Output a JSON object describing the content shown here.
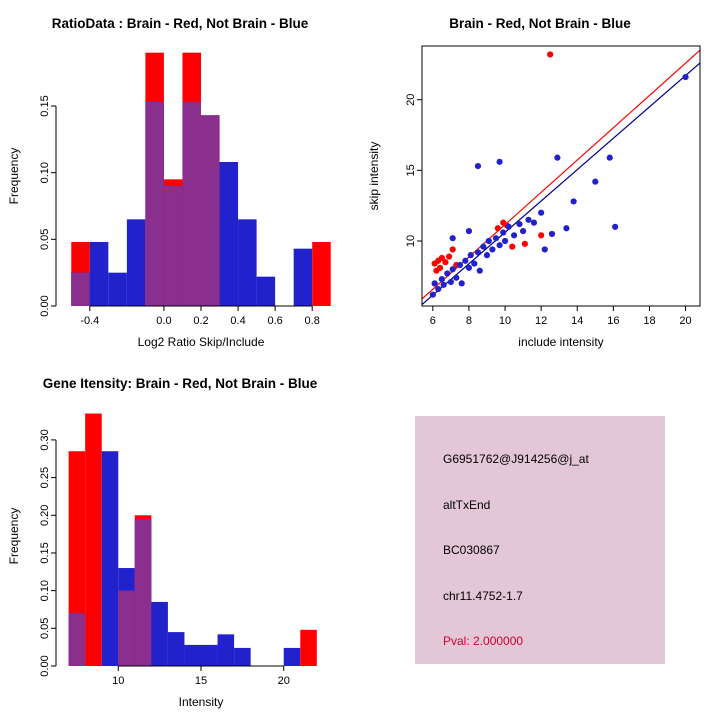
{
  "panels": {
    "info": {
      "bg": "#E4C7D7",
      "lines": [
        {
          "text": "G6951762@J914256@j_at",
          "color": "#000000"
        },
        {
          "text": "altTxEnd",
          "color": "#000000"
        },
        {
          "text": "BC030867",
          "color": "#000000"
        },
        {
          "text": "chr11.4752-1.7",
          "color": "#000000"
        },
        {
          "text": "Pval: 2.000000",
          "color": "#CC0033"
        }
      ]
    }
  },
  "chart_data": [
    {
      "type": "bar",
      "subtype": "overlaid-histogram",
      "title": "RatioData : Brain - Red, Not Brain - Blue",
      "xlabel": "Log2 Ratio Skip/Include",
      "ylabel": "Frequency",
      "xlim": [
        -0.55,
        0.95
      ],
      "ylim": [
        0,
        0.195
      ],
      "bin_start": -0.5,
      "bin_width": 0.1,
      "overlap_color": "#8B2F8F",
      "xticks": [
        {
          "v": -0.4,
          "label": "-0.4"
        },
        {
          "v": 0.0,
          "label": "0.0"
        },
        {
          "v": 0.2,
          "label": "0.2"
        },
        {
          "v": 0.4,
          "label": "0.4"
        },
        {
          "v": 0.6,
          "label": "0.6"
        },
        {
          "v": 0.8,
          "label": "0.8"
        }
      ],
      "yticks": [
        {
          "v": 0.0,
          "label": "0.00"
        },
        {
          "v": 0.05,
          "label": "0.05"
        },
        {
          "v": 0.1,
          "label": "0.10"
        },
        {
          "v": 0.15,
          "label": "0.15"
        }
      ],
      "series": [
        {
          "name": "Brain",
          "color": "#FF0000",
          "values": [
            0.048,
            0,
            0,
            0,
            0.19,
            0.095,
            0.19,
            0.143,
            0,
            0,
            0,
            0,
            0,
            0.048
          ]
        },
        {
          "name": "Not Brain",
          "color": "#2222CC",
          "values": [
            0.025,
            0.048,
            0.025,
            0.065,
            0.153,
            0.09,
            0.153,
            0.143,
            0.108,
            0.065,
            0.022,
            0,
            0.043,
            0
          ]
        }
      ]
    },
    {
      "type": "scatter",
      "title": "Brain - Red, Not Brain - Blue",
      "xlabel": "include intensity",
      "ylabel": "skip intensity",
      "xlim": [
        5.4,
        20.8
      ],
      "ylim": [
        5.4,
        23.8
      ],
      "xticks": [
        {
          "v": 6,
          "label": "6"
        },
        {
          "v": 8,
          "label": "8"
        },
        {
          "v": 10,
          "label": "10"
        },
        {
          "v": 12,
          "label": "12"
        },
        {
          "v": 14,
          "label": "14"
        },
        {
          "v": 16,
          "label": "16"
        },
        {
          "v": 18,
          "label": "18"
        },
        {
          "v": 20,
          "label": "20"
        }
      ],
      "yticks": [
        {
          "v": 10,
          "label": "10"
        },
        {
          "v": 15,
          "label": "15"
        },
        {
          "v": 20,
          "label": "20"
        }
      ],
      "lines": [
        {
          "color": "#FF0000",
          "x1": 5.4,
          "y1": 5.9,
          "x2": 20.8,
          "y2": 23.5
        },
        {
          "color": "#00008B",
          "x1": 5.4,
          "y1": 5.5,
          "x2": 20.8,
          "y2": 22.6
        }
      ],
      "series": [
        {
          "name": "Brain",
          "color": "#FF0000",
          "points": [
            [
              6.1,
              8.4
            ],
            [
              6.3,
              8.6
            ],
            [
              6.4,
              8.1
            ],
            [
              6.5,
              8.8
            ],
            [
              6.7,
              8.5
            ],
            [
              6.9,
              8.9
            ],
            [
              6.2,
              7.9
            ],
            [
              7.1,
              9.4
            ],
            [
              7.3,
              8.3
            ],
            [
              9.6,
              10.9
            ],
            [
              9.9,
              11.3
            ],
            [
              10.1,
              11.1
            ],
            [
              10.4,
              9.6
            ],
            [
              11.1,
              9.8
            ],
            [
              12.0,
              10.4
            ],
            [
              12.5,
              23.2
            ]
          ]
        },
        {
          "name": "Not Brain",
          "color": "#2222CC",
          "points": [
            [
              6.0,
              6.2
            ],
            [
              6.1,
              7.0
            ],
            [
              6.3,
              6.6
            ],
            [
              6.5,
              7.3
            ],
            [
              6.6,
              6.9
            ],
            [
              6.8,
              7.7
            ],
            [
              7.0,
              7.1
            ],
            [
              7.1,
              8.0
            ],
            [
              7.3,
              7.4
            ],
            [
              7.5,
              8.3
            ],
            [
              7.6,
              7.0
            ],
            [
              7.8,
              8.6
            ],
            [
              8.0,
              8.1
            ],
            [
              8.1,
              9.0
            ],
            [
              8.3,
              8.4
            ],
            [
              8.5,
              9.2
            ],
            [
              8.6,
              7.9
            ],
            [
              8.8,
              9.6
            ],
            [
              9.0,
              9.0
            ],
            [
              9.1,
              10.0
            ],
            [
              9.3,
              9.4
            ],
            [
              9.5,
              10.2
            ],
            [
              9.7,
              9.7
            ],
            [
              9.9,
              10.6
            ],
            [
              10.0,
              10.0
            ],
            [
              10.2,
              11.0
            ],
            [
              10.5,
              10.4
            ],
            [
              10.8,
              11.2
            ],
            [
              11.0,
              10.7
            ],
            [
              11.3,
              11.5
            ],
            [
              11.6,
              11.3
            ],
            [
              12.0,
              12.0
            ],
            [
              12.2,
              9.4
            ],
            [
              12.6,
              10.5
            ],
            [
              13.4,
              10.9
            ],
            [
              13.8,
              12.8
            ],
            [
              8.5,
              15.3
            ],
            [
              9.7,
              15.6
            ],
            [
              12.9,
              15.9
            ],
            [
              15.0,
              14.2
            ],
            [
              15.8,
              15.9
            ],
            [
              16.1,
              11.0
            ],
            [
              20.0,
              21.6
            ],
            [
              7.1,
              10.2
            ],
            [
              8.0,
              10.7
            ]
          ]
        }
      ]
    },
    {
      "type": "bar",
      "subtype": "overlaid-histogram",
      "title": "Gene Itensity: Brain - Red, Not Brain - Blue",
      "xlabel": "Intensity",
      "ylabel": "Frequency",
      "xlim": [
        6.6,
        23.4
      ],
      "ylim": [
        0,
        0.345
      ],
      "bin_start": 7,
      "bin_width": 1,
      "overlap_color": "#8B2F8F",
      "xticks": [
        {
          "v": 10,
          "label": "10"
        },
        {
          "v": 15,
          "label": "15"
        },
        {
          "v": 20,
          "label": "20"
        }
      ],
      "yticks": [
        {
          "v": 0.0,
          "label": "0.00"
        },
        {
          "v": 0.05,
          "label": "0.05"
        },
        {
          "v": 0.1,
          "label": "0.10"
        },
        {
          "v": 0.15,
          "label": "0.15"
        },
        {
          "v": 0.2,
          "label": "0.20"
        },
        {
          "v": 0.25,
          "label": "0.25"
        },
        {
          "v": 0.3,
          "label": "0.30"
        }
      ],
      "series": [
        {
          "name": "Brain",
          "color": "#FF0000",
          "values": [
            0.285,
            0.335,
            0,
            0.1,
            0.2,
            0,
            0,
            0,
            0,
            0,
            0,
            0,
            0,
            0,
            0.048,
            0
          ]
        },
        {
          "name": "Not Brain",
          "color": "#2222CC",
          "values": [
            0.07,
            0,
            0.285,
            0.13,
            0.195,
            0.085,
            0.045,
            0.028,
            0.028,
            0.042,
            0.024,
            0,
            0,
            0.024,
            0,
            0
          ]
        }
      ]
    }
  ]
}
